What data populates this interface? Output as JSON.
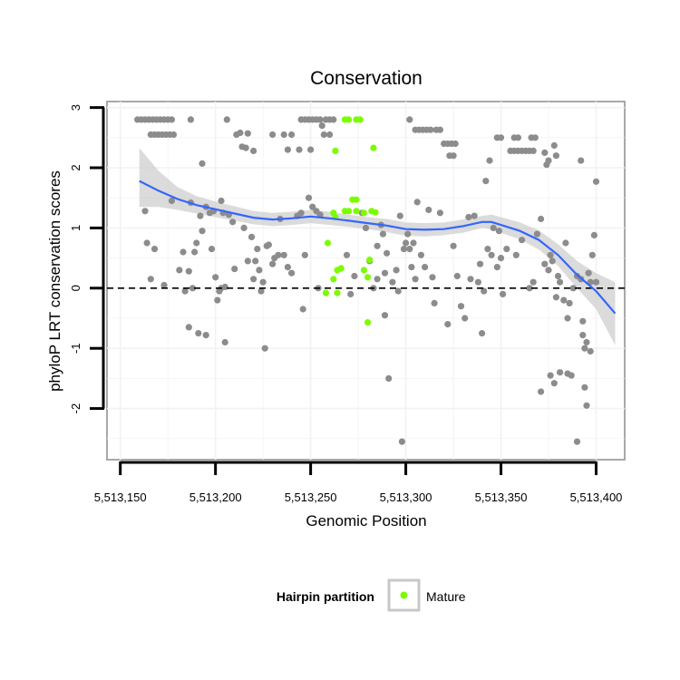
{
  "chart_data": {
    "type": "scatter",
    "title": "Conservation",
    "xlabel": "Genomic Position",
    "ylabel": "phyloP LRT conservation scores",
    "xlim": [
      5513143,
      5513415
    ],
    "ylim": [
      -2.85,
      3.1
    ],
    "x_ticks": [
      5513150,
      5513200,
      5513250,
      5513300,
      5513350,
      5513400
    ],
    "x_tick_labels": [
      "5,513,150",
      "5,513,200",
      "5,513,250",
      "5,513,300",
      "5,513,350",
      "5,513,400"
    ],
    "y_ticks": [
      -2,
      -1,
      0,
      1,
      2,
      3
    ],
    "y_tick_labels": [
      "-2",
      "-1",
      "0",
      "1",
      "2",
      "3"
    ],
    "grid": true,
    "reference_line": {
      "y": 0,
      "style": "dashed"
    },
    "legend": {
      "title": "Hairpin partition",
      "placement": "bottom",
      "entries": [
        {
          "label": "Mature",
          "color": "#7cfc00"
        }
      ]
    },
    "colors": {
      "points": "#8c8c8c",
      "mature": "#7cfc00",
      "smooth": "#3366ff",
      "band": "#cccccc"
    },
    "series": [
      {
        "points": [
          [
            5513159,
            2.8
          ],
          [
            5513161,
            2.8
          ],
          [
            5513163,
            2.8
          ],
          [
            5513165,
            2.8
          ],
          [
            5513167,
            2.8
          ],
          [
            5513169,
            2.8
          ],
          [
            5513171,
            2.8
          ],
          [
            5513173,
            2.8
          ],
          [
            5513175,
            2.8
          ],
          [
            5513177,
            2.8
          ],
          [
            5513166,
            2.55
          ],
          [
            5513168,
            2.55
          ],
          [
            5513170,
            2.55
          ],
          [
            5513172,
            2.55
          ],
          [
            5513174,
            2.55
          ],
          [
            5513176,
            2.55
          ],
          [
            5513178,
            2.55
          ],
          [
            5513187,
            2.8
          ],
          [
            5513206,
            2.8
          ],
          [
            5513213,
            2.58
          ],
          [
            5513211,
            2.55
          ],
          [
            5513217,
            2.57
          ],
          [
            5513214,
            2.35
          ],
          [
            5513216,
            2.33
          ],
          [
            5513220,
            2.28
          ],
          [
            5513193,
            2.07
          ],
          [
            5513230,
            2.55
          ],
          [
            5513236,
            2.55
          ],
          [
            5513240,
            2.55
          ],
          [
            5513245,
            2.8
          ],
          [
            5513247,
            2.8
          ],
          [
            5513249,
            2.8
          ],
          [
            5513251,
            2.8
          ],
          [
            5513253,
            2.8
          ],
          [
            5513255,
            2.8
          ],
          [
            5513256,
            2.7
          ],
          [
            5513258,
            2.8
          ],
          [
            5513260,
            2.8
          ],
          [
            5513262,
            2.8
          ],
          [
            5513238,
            2.3
          ],
          [
            5513244,
            2.3
          ],
          [
            5513250,
            2.3
          ],
          [
            5513257,
            2.55
          ],
          [
            5513260,
            2.55
          ],
          [
            5513302,
            2.8
          ],
          [
            5513305,
            2.63
          ],
          [
            5513307,
            2.63
          ],
          [
            5513309,
            2.63
          ],
          [
            5513311,
            2.63
          ],
          [
            5513313,
            2.63
          ],
          [
            5513316,
            2.63
          ],
          [
            5513318,
            2.63
          ],
          [
            5513320,
            2.4
          ],
          [
            5513322,
            2.4
          ],
          [
            5513324,
            2.4
          ],
          [
            5513326,
            2.4
          ],
          [
            5513323,
            2.2
          ],
          [
            5513325,
            2.2
          ],
          [
            5513348,
            2.5
          ],
          [
            5513350,
            2.5
          ],
          [
            5513357,
            2.5
          ],
          [
            5513359,
            2.5
          ],
          [
            5513366,
            2.5
          ],
          [
            5513368,
            2.5
          ],
          [
            5513355,
            2.28
          ],
          [
            5513357,
            2.28
          ],
          [
            5513359,
            2.28
          ],
          [
            5513361,
            2.28
          ],
          [
            5513363,
            2.28
          ],
          [
            5513365,
            2.28
          ],
          [
            5513367,
            2.28
          ],
          [
            5513373,
            2.25
          ],
          [
            5513375,
            2.12
          ],
          [
            5513374,
            2.05
          ],
          [
            5513378,
            2.37
          ],
          [
            5513379,
            2.2
          ],
          [
            5513392,
            2.12
          ],
          [
            5513400,
            1.77
          ],
          [
            5513342,
            1.78
          ],
          [
            5513344,
            2.12
          ],
          [
            5513163,
            1.28
          ],
          [
            5513164,
            0.75
          ],
          [
            5513166,
            0.15
          ],
          [
            5513168,
            0.65
          ],
          [
            5513173,
            0.05
          ],
          [
            5513177,
            1.45
          ],
          [
            5513181,
            0.3
          ],
          [
            5513183,
            0.6
          ],
          [
            5513184,
            -0.05
          ],
          [
            5513186,
            0.28
          ],
          [
            5513188,
            0.0
          ],
          [
            5513187,
            1.42
          ],
          [
            5513189,
            0.6
          ],
          [
            5513190,
            0.75
          ],
          [
            5513192,
            1.2
          ],
          [
            5513193,
            0.95
          ],
          [
            5513195,
            1.35
          ],
          [
            5513197,
            1.25
          ],
          [
            5513198,
            0.65
          ],
          [
            5513199,
            1.28
          ],
          [
            5513200,
            0.18
          ],
          [
            5513201,
            -0.2
          ],
          [
            5513202,
            -0.05
          ],
          [
            5513203,
            1.45
          ],
          [
            5513204,
            1.25
          ],
          [
            5513205,
            0.02
          ],
          [
            5513207,
            1.22
          ],
          [
            5513209,
            1.1
          ],
          [
            5513186,
            -0.65
          ],
          [
            5513191,
            -0.75
          ],
          [
            5513195,
            -0.78
          ],
          [
            5513205,
            -0.9
          ],
          [
            5513203,
            0.0
          ],
          [
            5513210,
            0.32
          ],
          [
            5513215,
            1.0
          ],
          [
            5513217,
            0.45
          ],
          [
            5513219,
            0.85
          ],
          [
            5513220,
            0.15
          ],
          [
            5513221,
            0.45
          ],
          [
            5513222,
            0.65
          ],
          [
            5513223,
            0.3
          ],
          [
            5513224,
            -0.05
          ],
          [
            5513225,
            0.1
          ],
          [
            5513226,
            -1.0
          ],
          [
            5513227,
            0.7
          ],
          [
            5513228,
            0.72
          ],
          [
            5513230,
            0.4
          ],
          [
            5513231,
            0.5
          ],
          [
            5513233,
            0.55
          ],
          [
            5513234,
            1.15
          ],
          [
            5513236,
            0.55
          ],
          [
            5513238,
            0.35
          ],
          [
            5513240,
            0.25
          ],
          [
            5513243,
            1.2
          ],
          [
            5513245,
            1.25
          ],
          [
            5513246,
            -0.35
          ],
          [
            5513247,
            0.55
          ],
          [
            5513249,
            1.5
          ],
          [
            5513251,
            1.35
          ],
          [
            5513253,
            1.28
          ],
          [
            5513254,
            0.0
          ],
          [
            5513255,
            1.22
          ],
          [
            5513285,
            0.7
          ],
          [
            5513288,
            0.9
          ],
          [
            5513289,
            0.25
          ],
          [
            5513290,
            0.58
          ],
          [
            5513291,
            -1.5
          ],
          [
            5513293,
            0.1
          ],
          [
            5513295,
            0.3
          ],
          [
            5513296,
            -0.05
          ],
          [
            5513297,
            1.2
          ],
          [
            5513298,
            -2.55
          ],
          [
            5513299,
            0.65
          ],
          [
            5513300,
            0.75
          ],
          [
            5513301,
            0.9
          ],
          [
            5513302,
            0.65
          ],
          [
            5513303,
            0.35
          ],
          [
            5513304,
            0.75
          ],
          [
            5513305,
            0.15
          ],
          [
            5513306,
            1.43
          ],
          [
            5513308,
            0.55
          ],
          [
            5513310,
            0.35
          ],
          [
            5513312,
            1.3
          ],
          [
            5513314,
            0.18
          ],
          [
            5513315,
            -0.25
          ],
          [
            5513318,
            1.25
          ],
          [
            5513322,
            -0.6
          ],
          [
            5513325,
            0.7
          ],
          [
            5513327,
            0.2
          ],
          [
            5513329,
            -0.3
          ],
          [
            5513331,
            -0.5
          ],
          [
            5513333,
            1.18
          ],
          [
            5513334,
            0.15
          ],
          [
            5513336,
            1.2
          ],
          [
            5513338,
            0.1
          ],
          [
            5513339,
            0.4
          ],
          [
            5513340,
            -0.75
          ],
          [
            5513341,
            -0.05
          ],
          [
            5513343,
            0.65
          ],
          [
            5513345,
            0.55
          ],
          [
            5513346,
            1.0
          ],
          [
            5513348,
            0.35
          ],
          [
            5513349,
            0.95
          ],
          [
            5513350,
            0.5
          ],
          [
            5513351,
            -0.1
          ],
          [
            5513353,
            0.65
          ],
          [
            5513358,
            0.55
          ],
          [
            5513361,
            0.8
          ],
          [
            5513365,
            0.0
          ],
          [
            5513367,
            0.1
          ],
          [
            5513369,
            0.9
          ],
          [
            5513371,
            1.15
          ],
          [
            5513373,
            0.4
          ],
          [
            5513375,
            0.3
          ],
          [
            5513376,
            0.55
          ],
          [
            5513377,
            0.45
          ],
          [
            5513379,
            -0.15
          ],
          [
            5513380,
            0.2
          ],
          [
            5513381,
            0.1
          ],
          [
            5513383,
            -0.2
          ],
          [
            5513384,
            0.75
          ],
          [
            5513385,
            -0.5
          ],
          [
            5513386,
            -0.25
          ],
          [
            5513388,
            0.0
          ],
          [
            5513390,
            0.2
          ],
          [
            5513392,
            0.15
          ],
          [
            5513393,
            -0.55
          ],
          [
            5513394,
            -1.0
          ],
          [
            5513395,
            -0.9
          ],
          [
            5513396,
            0.25
          ],
          [
            5513397,
            -1.05
          ],
          [
            5513398,
            0.55
          ],
          [
            5513399,
            0.88
          ],
          [
            5513400,
            0.1
          ],
          [
            5513371,
            -1.72
          ],
          [
            5513376,
            -1.45
          ],
          [
            5513378,
            -1.58
          ],
          [
            5513381,
            -1.4
          ],
          [
            5513385,
            -1.42
          ],
          [
            5513387,
            -1.45
          ],
          [
            5513390,
            -2.55
          ],
          [
            5513393,
            -0.78
          ],
          [
            5513394,
            -1.65
          ],
          [
            5513395,
            -1.95
          ],
          [
            5513397,
            0.1
          ],
          [
            5513269,
            0.55
          ],
          [
            5513271,
            -0.1
          ],
          [
            5513273,
            0.2
          ],
          [
            5513277,
            1.25
          ],
          [
            5513279,
            1.0
          ],
          [
            5513281,
            0.45
          ],
          [
            5513283,
            0.0
          ],
          [
            5513285,
            0.15
          ],
          [
            5513287,
            1.05
          ],
          [
            5513289,
            -0.45
          ]
        ]
      },
      {
        "name": "Mature",
        "points": [
          [
            5513268,
            2.8
          ],
          [
            5513270,
            2.8
          ],
          [
            5513274,
            2.8
          ],
          [
            5513276,
            2.8
          ],
          [
            5513263,
            2.28
          ],
          [
            5513283,
            2.33
          ],
          [
            5513272,
            1.47
          ],
          [
            5513274,
            1.47
          ],
          [
            5513268,
            1.28
          ],
          [
            5513270,
            1.28
          ],
          [
            5513274,
            1.28
          ],
          [
            5513278,
            1.25
          ],
          [
            5513282,
            1.28
          ],
          [
            5513284,
            1.26
          ],
          [
            5513262,
            1.25
          ],
          [
            5513263,
            1.18
          ],
          [
            5513259,
            0.75
          ],
          [
            5513264,
            0.3
          ],
          [
            5513266,
            0.33
          ],
          [
            5513262,
            0.15
          ],
          [
            5513258,
            -0.08
          ],
          [
            5513264,
            -0.08
          ],
          [
            5513278,
            0.3
          ],
          [
            5513280,
            0.18
          ],
          [
            5513281,
            0.47
          ],
          [
            5513280,
            -0.57
          ]
        ]
      }
    ],
    "smooth": {
      "x": [
        5513160,
        5513170,
        5513180,
        5513190,
        5513200,
        5513210,
        5513220,
        5513230,
        5513240,
        5513250,
        5513260,
        5513270,
        5513280,
        5513290,
        5513300,
        5513310,
        5513320,
        5513330,
        5513340,
        5513345,
        5513350,
        5513360,
        5513370,
        5513380,
        5513390,
        5513400,
        5513410
      ],
      "y": [
        1.78,
        1.62,
        1.48,
        1.38,
        1.31,
        1.24,
        1.17,
        1.14,
        1.16,
        1.19,
        1.16,
        1.12,
        1.08,
        1.04,
        0.98,
        0.97,
        0.98,
        1.03,
        1.1,
        1.1,
        1.05,
        0.95,
        0.8,
        0.55,
        0.22,
        -0.05,
        -0.42
      ],
      "lower": [
        1.35,
        1.35,
        1.3,
        1.24,
        1.18,
        1.12,
        1.06,
        1.03,
        1.05,
        1.08,
        1.05,
        1.02,
        0.98,
        0.93,
        0.87,
        0.86,
        0.88,
        0.92,
        1.0,
        0.98,
        0.92,
        0.81,
        0.64,
        0.37,
        0.0,
        -0.35,
        -0.95
      ],
      "upper": [
        2.33,
        1.95,
        1.68,
        1.53,
        1.44,
        1.36,
        1.28,
        1.25,
        1.27,
        1.3,
        1.27,
        1.22,
        1.18,
        1.15,
        1.09,
        1.08,
        1.09,
        1.14,
        1.2,
        1.22,
        1.18,
        1.09,
        0.96,
        0.73,
        0.45,
        0.25,
        0.1
      ]
    }
  }
}
